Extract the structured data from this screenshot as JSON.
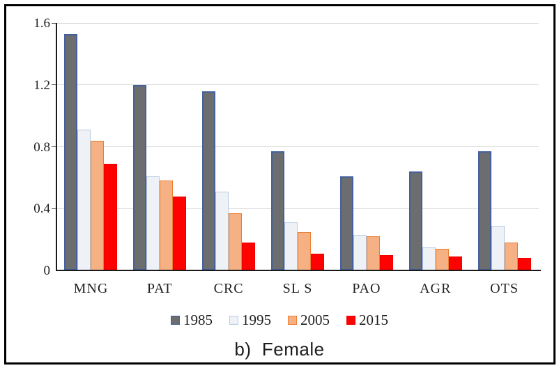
{
  "figure": {
    "caption": "b)  Female"
  },
  "chart_data": {
    "type": "bar",
    "title": "",
    "xlabel": "",
    "ylabel": "",
    "categories": [
      "MNG",
      "PAT",
      "CRC",
      "SL S",
      "PAO",
      "AGR",
      "OTS"
    ],
    "series": [
      {
        "name": "1985",
        "fill": "#6C6D6F",
        "border": "#44619D",
        "values": [
          1.53,
          1.2,
          1.16,
          0.77,
          0.61,
          0.64,
          0.77
        ]
      },
      {
        "name": "1995",
        "fill": "#EEF1F6",
        "border": "#B9CCE4",
        "values": [
          0.91,
          0.61,
          0.51,
          0.31,
          0.23,
          0.15,
          0.29
        ]
      },
      {
        "name": "2005",
        "fill": "#F5B183",
        "border": "#ED7D31",
        "values": [
          0.84,
          0.58,
          0.37,
          0.25,
          0.22,
          0.14,
          0.18
        ]
      },
      {
        "name": "2015",
        "fill": "#FE0101",
        "border": "#ED0000",
        "values": [
          0.69,
          0.48,
          0.18,
          0.11,
          0.1,
          0.09,
          0.08
        ]
      }
    ],
    "ylim": [
      0,
      1.6
    ],
    "yticks": [
      "0",
      "0.4",
      "0.8",
      "1.2",
      "1.6"
    ],
    "grid": true,
    "legend_position": "bottom"
  },
  "colors": {
    "background": "#FFFFFF",
    "frame": "#000000",
    "grid": "#D9D9D9",
    "axis": "#1A1A1A",
    "text": "#1F1F1F"
  }
}
